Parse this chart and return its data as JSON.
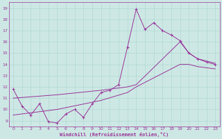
{
  "xlabel": "Windchill (Refroidissement éolien,°C)",
  "bg_color": "#cde8e4",
  "line_color": "#993399",
  "grid_color": "#b0d8d4",
  "xlim": [
    -0.5,
    23.5
  ],
  "ylim": [
    8.5,
    19.5
  ],
  "xticks": [
    0,
    1,
    2,
    3,
    4,
    5,
    6,
    7,
    8,
    9,
    10,
    11,
    12,
    13,
    14,
    15,
    16,
    17,
    18,
    19,
    20,
    21,
    22,
    23
  ],
  "yticks": [
    9,
    10,
    11,
    12,
    13,
    14,
    15,
    16,
    17,
    18,
    19
  ],
  "line1_x": [
    0,
    1,
    2,
    3,
    4,
    5,
    6,
    7,
    8,
    9,
    10,
    11,
    12,
    13,
    14,
    15,
    16,
    17,
    18,
    19,
    20,
    21,
    22,
    23
  ],
  "line1_y": [
    11.8,
    10.3,
    9.5,
    10.5,
    8.9,
    8.8,
    9.6,
    10.0,
    9.3,
    10.5,
    11.5,
    11.7,
    12.2,
    15.5,
    18.9,
    17.1,
    17.7,
    17.0,
    16.6,
    16.1,
    15.0,
    14.5,
    14.2,
    14.0
  ],
  "line2_x": [
    0,
    5,
    10,
    13,
    14,
    19,
    20,
    21,
    22,
    23
  ],
  "line2_y": [
    11.0,
    11.3,
    11.7,
    12.0,
    12.2,
    16.0,
    15.0,
    14.5,
    14.3,
    14.1
  ],
  "line3_x": [
    0,
    5,
    10,
    13,
    14,
    19,
    20,
    21,
    22,
    23
  ],
  "line3_y": [
    9.5,
    10.0,
    10.8,
    11.5,
    12.0,
    14.0,
    14.0,
    13.8,
    13.7,
    13.6
  ]
}
